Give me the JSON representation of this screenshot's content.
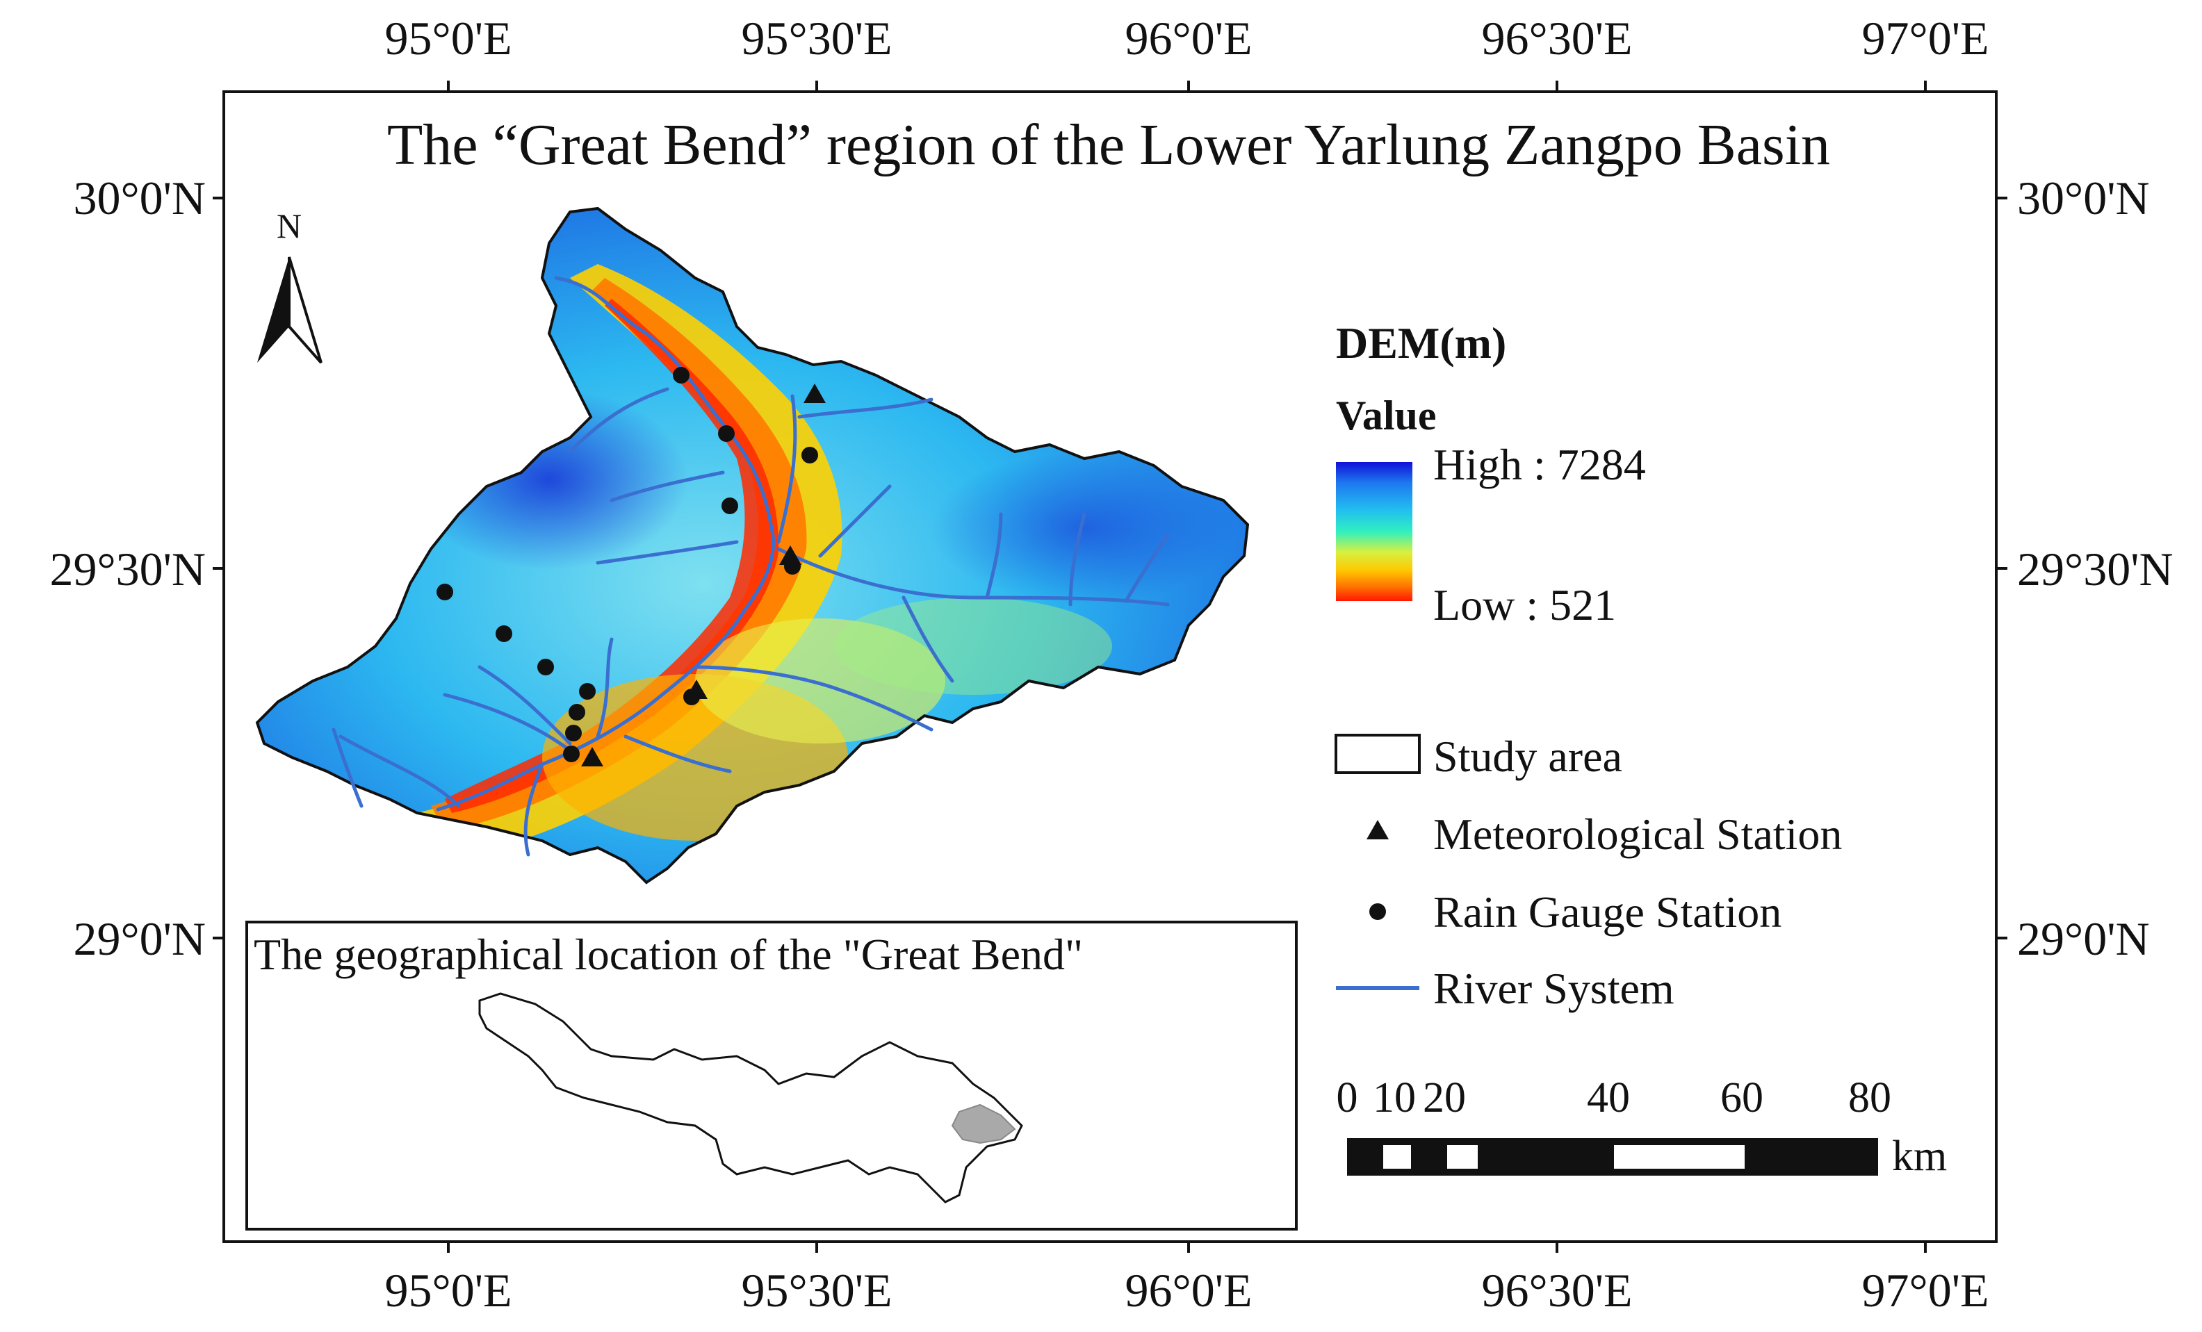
{
  "map": {
    "title": "The “Great Bend” region of the Lower Yarlung Zangpo Basin",
    "north_label": "N",
    "lon_ticks": [
      "95°0'E",
      "95°30'E",
      "96°0'E",
      "96°30'E",
      "97°0'E"
    ],
    "lat_ticks": [
      "30°0'N",
      "29°30'N",
      "29°0'N"
    ]
  },
  "legend": {
    "dem_title": "DEM(m)",
    "value_label": "Value",
    "high_label": "High : 7284",
    "low_label": "Low : 521",
    "ramp_colors": [
      "#1010d8",
      "#1e78f0",
      "#22c0f0",
      "#30f0c0",
      "#d8f040",
      "#ffc800",
      "#ff7000",
      "#ff1800"
    ],
    "items": [
      {
        "label": "Study area",
        "symbol": "box"
      },
      {
        "label": "Meteorological Station",
        "symbol": "triangle"
      },
      {
        "label": "Rain Gauge Station",
        "symbol": "dot"
      },
      {
        "label": "River System",
        "symbol": "line",
        "color": "#3a6fd0"
      }
    ]
  },
  "scale_bar": {
    "ticks": [
      "0",
      "10",
      "20",
      "40",
      "60",
      "80"
    ],
    "unit": "km"
  },
  "inset": {
    "title": "The geographical location of the \"Great Bend\"",
    "highlight_color": "#a9a9a9"
  }
}
